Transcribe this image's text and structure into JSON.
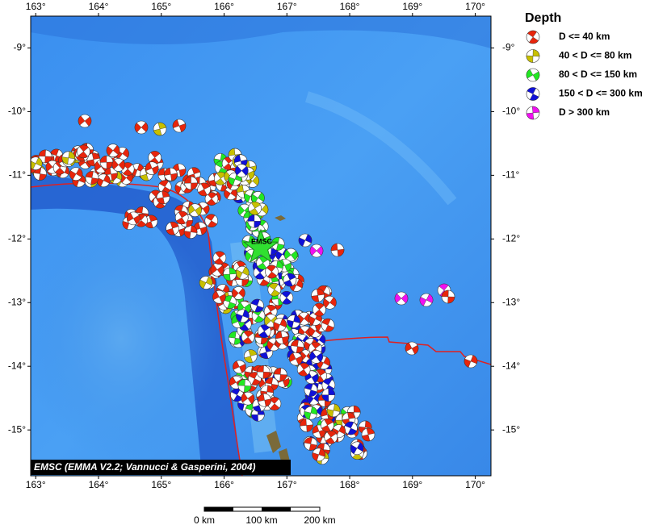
{
  "map": {
    "xlim": [
      162.92,
      170.25
    ],
    "ylim": [
      -15.72,
      -8.5
    ],
    "lon_ticks": [
      {
        "value": 163,
        "label": "163°"
      },
      {
        "value": 164,
        "label": "164°"
      },
      {
        "value": 165,
        "label": "165°"
      },
      {
        "value": 166,
        "label": "166°"
      },
      {
        "value": 167,
        "label": "167°"
      },
      {
        "value": 168,
        "label": "168°"
      },
      {
        "value": 169,
        "label": "169°"
      },
      {
        "value": 170,
        "label": "170°"
      }
    ],
    "lat_ticks": [
      {
        "value": -9,
        "label": "-9°"
      },
      {
        "value": -10,
        "label": "-10°"
      },
      {
        "value": -11,
        "label": "-11°"
      },
      {
        "value": -12,
        "label": "-12°"
      },
      {
        "value": -13,
        "label": "-13°"
      },
      {
        "value": -14,
        "label": "-14°"
      },
      {
        "value": -15,
        "label": "-15°"
      }
    ],
    "legend": {
      "title": "Depth",
      "entries": [
        {
          "label": "D <= 40 km",
          "color": "#e8250c"
        },
        {
          "label": "40 < D <= 80 km",
          "color": "#c8c000"
        },
        {
          "label": "80 < D <= 150 km",
          "color": "#22e822"
        },
        {
          "label": "150 < D <= 300 km",
          "color": "#1010d8"
        },
        {
          "label": "D > 300 km",
          "color": "#f010f0"
        }
      ]
    },
    "epicenter_label": "EMSC",
    "credit": "EMSC (EMMA V2.2; Vannucci & Gasperini, 2004)",
    "scale_bar": [
      "0 km",
      "100 km",
      "200 km"
    ]
  }
}
